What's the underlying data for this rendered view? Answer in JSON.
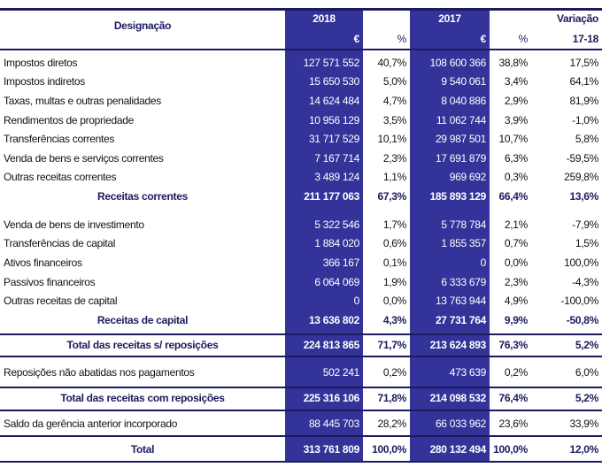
{
  "header": {
    "designacao": "Designação",
    "year_2018": "2018",
    "year_2017": "2017",
    "variacao": "Variação",
    "euro_2018": "€",
    "pct_2018": "%",
    "euro_2017": "€",
    "pct_2017": "%",
    "period": "17-18"
  },
  "colors": {
    "blue": "#333399",
    "navy": "#1b1b5e"
  },
  "rows": [
    {
      "label": "Impostos diretos",
      "v2018": "127 571 552",
      "p2018": "40,7%",
      "v2017": "108 600 366",
      "p2017": "38,8%",
      "var": "17,5%"
    },
    {
      "label": "Impostos indiretos",
      "v2018": "15 650 530",
      "p2018": "5,0%",
      "v2017": "9 540 061",
      "p2017": "3,4%",
      "var": "64,1%"
    },
    {
      "label": "Taxas, multas e outras penalidades",
      "v2018": "14 624 484",
      "p2018": "4,7%",
      "v2017": "8 040 886",
      "p2017": "2,9%",
      "var": "81,9%"
    },
    {
      "label": "Rendimentos de propriedade",
      "v2018": "10 956 129",
      "p2018": "3,5%",
      "v2017": "11 062 744",
      "p2017": "3,9%",
      "var": "-1,0%"
    },
    {
      "label": "Transferências correntes",
      "v2018": "31 717 529",
      "p2018": "10,1%",
      "v2017": "29 987 501",
      "p2017": "10,7%",
      "var": "5,8%"
    },
    {
      "label": "Venda de bens e serviços correntes",
      "v2018": "7 167 714",
      "p2018": "2,3%",
      "v2017": "17 691 879",
      "p2017": "6,3%",
      "var": "-59,5%"
    },
    {
      "label": "Outras receitas correntes",
      "v2018": "3 489 124",
      "p2018": "1,1%",
      "v2017": "969 692",
      "p2017": "0,3%",
      "var": "259,8%"
    },
    {
      "label": "Receitas correntes",
      "v2018": "211 177 063",
      "p2018": "67,3%",
      "v2017": "185 893 129",
      "p2017": "66,4%",
      "var": "13,6%"
    },
    {
      "label": "Venda de bens de investimento",
      "v2018": "5 322 546",
      "p2018": "1,7%",
      "v2017": "5 778 784",
      "p2017": "2,1%",
      "var": "-7,9%"
    },
    {
      "label": "Transferências de capital",
      "v2018": "1 884 020",
      "p2018": "0,6%",
      "v2017": "1 855 357",
      "p2017": "0,7%",
      "var": "1,5%"
    },
    {
      "label": "Ativos financeiros",
      "v2018": "366 167",
      "p2018": "0,1%",
      "v2017": "0",
      "p2017": "0,0%",
      "var": "100,0%"
    },
    {
      "label": "Passivos financeiros",
      "v2018": "6 064 069",
      "p2018": "1,9%",
      "v2017": "6 333 679",
      "p2017": "2,3%",
      "var": "-4,3%"
    },
    {
      "label": "Outras receitas de capital",
      "v2018": "0",
      "p2018": "0,0%",
      "v2017": "13 763 944",
      "p2017": "4,9%",
      "var": "-100,0%"
    },
    {
      "label": "Receitas de capital",
      "v2018": "13 636 802",
      "p2018": "4,3%",
      "v2017": "27 731 764",
      "p2017": "9,9%",
      "var": "-50,8%"
    },
    {
      "label": "Total das receitas s/ reposições",
      "v2018": "224 813 865",
      "p2018": "71,7%",
      "v2017": "213 624 893",
      "p2017": "76,3%",
      "var": "5,2%"
    },
    {
      "label": "Reposições não abatidas nos pagamentos",
      "v2018": "502 241",
      "p2018": "0,2%",
      "v2017": "473 639",
      "p2017": "0,2%",
      "var": "6,0%"
    },
    {
      "label": "Total das receitas com reposições",
      "v2018": "225 316 106",
      "p2018": "71,8%",
      "v2017": "214 098 532",
      "p2017": "76,4%",
      "var": "5,2%"
    },
    {
      "label": "Saldo da gerência anterior incorporado",
      "v2018": "88 445 703",
      "p2018": "28,2%",
      "v2017": "66 033 962",
      "p2017": "23,6%",
      "var": "33,9%"
    },
    {
      "label": "Total",
      "v2018": "313 761 809",
      "p2018": "100,0%",
      "v2017": "280 132 494",
      "p2017": "100,0%",
      "var": "12,0%"
    }
  ]
}
